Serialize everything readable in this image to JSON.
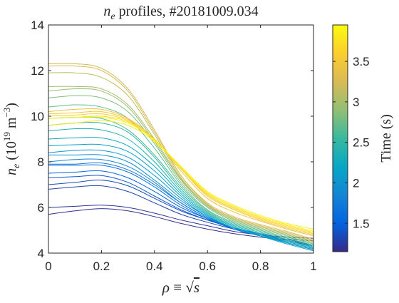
{
  "chart_data": {
    "type": "line",
    "title": "n_e profiles, #20181009.034",
    "title_parts": {
      "var": "n",
      "sub": "e",
      "rest": " profiles, #20181009.034"
    },
    "xlabel": "ρ ≡ √s",
    "xlabel_parts": {
      "rho": "ρ",
      "equiv": " ≡ ",
      "sqrt": "√",
      "s": "s"
    },
    "ylabel": "n_e (10^19 m^-3)",
    "ylabel_parts": {
      "var": "n",
      "sub": "e",
      "open": " (10",
      "exp": "19",
      "unit": " m",
      "unit_exp": "−3",
      "close": ")"
    },
    "xlim": [
      0,
      1
    ],
    "ylim": [
      4,
      14
    ],
    "xticks": [
      "0",
      "0.2",
      "0.4",
      "0.6",
      "0.8",
      "1"
    ],
    "yticks": [
      "4",
      "6",
      "8",
      "10",
      "12",
      "14"
    ],
    "x_tick_values": [
      0,
      0.2,
      0.4,
      0.6,
      0.8,
      1
    ],
    "y_tick_values": [
      4,
      6,
      8,
      10,
      12,
      14
    ],
    "grid": false,
    "colorbar": {
      "label": "Time (s)",
      "range": [
        1.15,
        3.95
      ],
      "ticks": [
        "1.5",
        "2",
        "2.5",
        "3",
        "3.5"
      ],
      "tick_values": [
        1.5,
        2,
        2.5,
        3,
        3.5
      ],
      "colormap": "parula",
      "colors": [
        "#352a87",
        "#0363e1",
        "#1485d4",
        "#06a7c6",
        "#38b99e",
        "#92bf73",
        "#d9ba56",
        "#fcce2e",
        "#f9fb0e"
      ]
    },
    "x": [
      0,
      0.1,
      0.2,
      0.3,
      0.4,
      0.5,
      0.6,
      0.7,
      0.8,
      0.9,
      1.0
    ],
    "series": [
      {
        "time": 1.18,
        "values": [
          5.7,
          5.85,
          5.95,
          5.85,
          5.6,
          5.3,
          5.05,
          4.85,
          4.7,
          4.6,
          4.55
        ]
      },
      {
        "time": 1.22,
        "values": [
          6.0,
          6.05,
          6.1,
          6.0,
          5.75,
          5.45,
          5.2,
          4.95,
          4.8,
          4.7,
          4.65
        ]
      },
      {
        "time": 1.3,
        "values": [
          6.8,
          6.9,
          6.95,
          6.7,
          6.2,
          5.7,
          5.35,
          5.05,
          4.8,
          4.55,
          4.3
        ]
      },
      {
        "time": 1.36,
        "values": [
          7.0,
          7.1,
          7.2,
          6.95,
          6.4,
          5.85,
          5.45,
          5.1,
          4.85,
          4.6,
          4.35
        ]
      },
      {
        "time": 1.42,
        "values": [
          7.3,
          7.35,
          7.4,
          7.1,
          6.5,
          5.9,
          5.45,
          5.1,
          4.85,
          4.6,
          4.3
        ]
      },
      {
        "time": 1.52,
        "values": [
          7.5,
          7.55,
          7.6,
          7.3,
          6.7,
          6.0,
          5.5,
          5.1,
          4.8,
          4.55,
          4.25
        ]
      },
      {
        "time": 1.62,
        "values": [
          7.85,
          7.85,
          7.85,
          7.55,
          6.9,
          6.1,
          5.5,
          5.05,
          4.75,
          4.5,
          4.2
        ]
      },
      {
        "time": 1.72,
        "values": [
          7.9,
          7.9,
          7.95,
          7.65,
          7.0,
          6.2,
          5.55,
          5.1,
          4.8,
          4.5,
          4.2
        ]
      },
      {
        "time": 1.85,
        "values": [
          8.0,
          8.1,
          8.1,
          7.8,
          7.1,
          6.2,
          5.55,
          5.1,
          4.8,
          4.45,
          4.15
        ]
      },
      {
        "time": 1.95,
        "values": [
          8.3,
          8.3,
          8.3,
          8.0,
          7.2,
          6.3,
          5.6,
          5.1,
          4.8,
          4.45,
          4.15
        ]
      },
      {
        "time": 2.05,
        "values": [
          8.4,
          8.5,
          8.5,
          8.2,
          7.4,
          6.4,
          5.6,
          5.1,
          4.75,
          4.4,
          4.1
        ]
      },
      {
        "time": 2.15,
        "values": [
          8.7,
          8.75,
          8.75,
          8.45,
          7.6,
          6.5,
          5.65,
          5.1,
          4.75,
          4.45,
          4.15
        ]
      },
      {
        "time": 2.25,
        "values": [
          9.0,
          9.05,
          9.05,
          8.7,
          7.8,
          6.6,
          5.7,
          5.15,
          4.8,
          4.5,
          4.2
        ]
      },
      {
        "time": 2.38,
        "values": [
          9.35,
          9.45,
          9.4,
          9.0,
          8.0,
          6.7,
          5.75,
          5.2,
          4.85,
          4.55,
          4.25
        ]
      },
      {
        "time": 2.5,
        "values": [
          9.6,
          9.7,
          9.7,
          9.3,
          8.2,
          6.8,
          5.8,
          5.25,
          4.9,
          4.6,
          4.3
        ]
      },
      {
        "time": 2.6,
        "values": [
          9.9,
          9.95,
          9.9,
          9.4,
          8.3,
          6.9,
          5.85,
          5.3,
          4.95,
          4.65,
          4.35
        ]
      },
      {
        "time": 2.72,
        "values": [
          10.4,
          10.5,
          10.4,
          9.9,
          8.6,
          7.0,
          5.9,
          5.35,
          5.0,
          4.7,
          4.4
        ]
      },
      {
        "time": 2.82,
        "values": [
          10.8,
          10.9,
          10.8,
          10.2,
          8.8,
          7.1,
          6.0,
          5.4,
          5.05,
          4.75,
          4.4
        ]
      },
      {
        "time": 2.92,
        "values": [
          11.1,
          11.2,
          11.1,
          10.4,
          8.9,
          7.2,
          6.05,
          5.45,
          5.1,
          4.8,
          4.45
        ]
      },
      {
        "time": 3.02,
        "values": [
          11.3,
          11.3,
          11.2,
          10.5,
          9.0,
          7.25,
          6.1,
          5.5,
          5.15,
          4.85,
          4.5
        ]
      },
      {
        "time": 3.1,
        "values": [
          11.9,
          11.9,
          11.7,
          10.9,
          9.2,
          7.3,
          6.1,
          5.5,
          5.15,
          4.85,
          4.5
        ]
      },
      {
        "time": 3.18,
        "values": [
          12.3,
          12.3,
          12.1,
          11.2,
          9.4,
          7.4,
          6.15,
          5.55,
          5.2,
          4.9,
          4.55
        ]
      },
      {
        "time": 3.3,
        "values": [
          12.2,
          12.2,
          12.0,
          11.1,
          9.3,
          7.4,
          6.2,
          5.6,
          5.25,
          4.95,
          4.6
        ]
      },
      {
        "time": 3.42,
        "values": [
          10.2,
          10.3,
          10.3,
          9.9,
          9.0,
          7.6,
          6.4,
          5.8,
          5.4,
          5.05,
          4.75
        ]
      },
      {
        "time": 3.52,
        "values": [
          10.1,
          10.15,
          10.2,
          9.85,
          9.0,
          7.7,
          6.5,
          5.9,
          5.45,
          5.1,
          4.8
        ]
      },
      {
        "time": 3.62,
        "values": [
          10.0,
          10.05,
          10.1,
          9.8,
          8.95,
          7.7,
          6.55,
          5.95,
          5.5,
          5.15,
          4.85
        ]
      },
      {
        "time": 3.72,
        "values": [
          9.9,
          9.95,
          10.0,
          9.75,
          8.95,
          7.75,
          6.6,
          6.0,
          5.55,
          5.2,
          4.9
        ]
      },
      {
        "time": 3.82,
        "values": [
          9.6,
          9.7,
          9.8,
          9.6,
          8.9,
          7.75,
          6.65,
          6.05,
          5.6,
          5.25,
          4.95
        ]
      },
      {
        "time": 3.9,
        "values": [
          9.9,
          9.95,
          9.95,
          9.7,
          8.95,
          7.8,
          6.7,
          6.1,
          5.65,
          5.3,
          5.05
        ]
      }
    ]
  }
}
